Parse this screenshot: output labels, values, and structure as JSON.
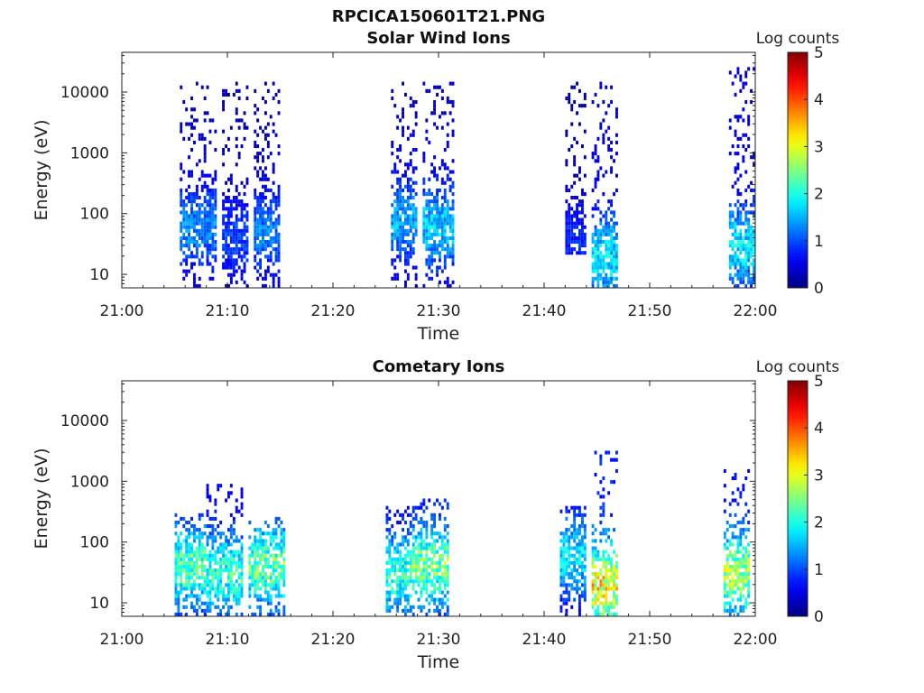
{
  "figure_title": "RPCICA150601T21.PNG",
  "chart_data": [
    {
      "type": "heatmap",
      "title": "Solar Wind Ions",
      "xlabel": "Time",
      "ylabel": "Energy (eV)",
      "x_ticks": [
        "21:00",
        "21:10",
        "21:20",
        "21:30",
        "21:40",
        "21:50",
        "22:00"
      ],
      "xlim": [
        "21:00",
        "22:00"
      ],
      "y_scale": "log",
      "y_ticks": [
        "10",
        "100",
        "1000",
        "10000"
      ],
      "ylim": [
        6,
        45000
      ],
      "colorbar": {
        "label": "Log counts",
        "range": [
          0,
          5
        ],
        "ticks": [
          "0",
          "1",
          "2",
          "3",
          "4",
          "5"
        ]
      },
      "bursts": [
        {
          "start": "21:05:30",
          "end": "21:09:00",
          "emin": 6,
          "emax": 15000,
          "peak_log_counts": 1.6,
          "low_energy_peak": 60
        },
        {
          "start": "21:09:30",
          "end": "21:12:00",
          "emin": 6,
          "emax": 18000,
          "peak_log_counts": 1.2,
          "low_energy_peak": 40
        },
        {
          "start": "21:12:30",
          "end": "21:15:00",
          "emin": 6,
          "emax": 15000,
          "peak_log_counts": 1.5,
          "low_energy_peak": 50
        },
        {
          "start": "21:25:30",
          "end": "21:28:00",
          "emin": 6,
          "emax": 15000,
          "peak_log_counts": 1.8,
          "low_energy_peak": 80
        },
        {
          "start": "21:28:30",
          "end": "21:31:30",
          "emin": 6,
          "emax": 15000,
          "peak_log_counts": 2.0,
          "low_energy_peak": 60
        },
        {
          "start": "21:42:00",
          "end": "21:44:00",
          "emin": 20,
          "emax": 20000,
          "peak_log_counts": 1.0,
          "low_energy_peak": 40
        },
        {
          "start": "21:44:30",
          "end": "21:47:00",
          "emin": 6,
          "emax": 15000,
          "peak_log_counts": 2.2,
          "low_energy_peak": 20
        },
        {
          "start": "21:57:30",
          "end": "22:00:00",
          "emin": 6,
          "emax": 30000,
          "peak_log_counts": 2.2,
          "low_energy_peak": 30
        }
      ]
    },
    {
      "type": "heatmap",
      "title": "Cometary Ions",
      "xlabel": "Time",
      "ylabel": "Energy (eV)",
      "x_ticks": [
        "21:00",
        "21:10",
        "21:20",
        "21:30",
        "21:40",
        "21:50",
        "22:00"
      ],
      "xlim": [
        "21:00",
        "22:00"
      ],
      "y_scale": "log",
      "y_ticks": [
        "10",
        "100",
        "1000",
        "10000"
      ],
      "ylim": [
        6,
        45000
      ],
      "colorbar": {
        "label": "Log counts",
        "range": [
          0,
          5
        ],
        "ticks": [
          "0",
          "1",
          "2",
          "3",
          "4",
          "5"
        ]
      },
      "bursts": [
        {
          "start": "21:05:00",
          "end": "21:08:00",
          "emin": 6,
          "emax": 300,
          "peak_log_counts": 2.8,
          "low_energy_peak": 40
        },
        {
          "start": "21:08:00",
          "end": "21:11:30",
          "emin": 6,
          "emax": 900,
          "peak_log_counts": 2.6,
          "low_energy_peak": 30
        },
        {
          "start": "21:12:00",
          "end": "21:15:30",
          "emin": 6,
          "emax": 250,
          "peak_log_counts": 2.9,
          "low_energy_peak": 40
        },
        {
          "start": "21:25:00",
          "end": "21:27:30",
          "emin": 6,
          "emax": 400,
          "peak_log_counts": 2.6,
          "low_energy_peak": 30
        },
        {
          "start": "21:27:30",
          "end": "21:31:00",
          "emin": 6,
          "emax": 500,
          "peak_log_counts": 3.0,
          "low_energy_peak": 40
        },
        {
          "start": "21:41:30",
          "end": "21:44:00",
          "emin": 6,
          "emax": 400,
          "peak_log_counts": 2.2,
          "low_energy_peak": 60
        },
        {
          "start": "21:44:30",
          "end": "21:47:00",
          "emin": 6,
          "emax": 3000,
          "peak_log_counts": 3.9,
          "low_energy_peak": 20
        },
        {
          "start": "21:57:00",
          "end": "21:59:30",
          "emin": 6,
          "emax": 1500,
          "peak_log_counts": 3.3,
          "low_energy_peak": 30
        }
      ]
    }
  ]
}
